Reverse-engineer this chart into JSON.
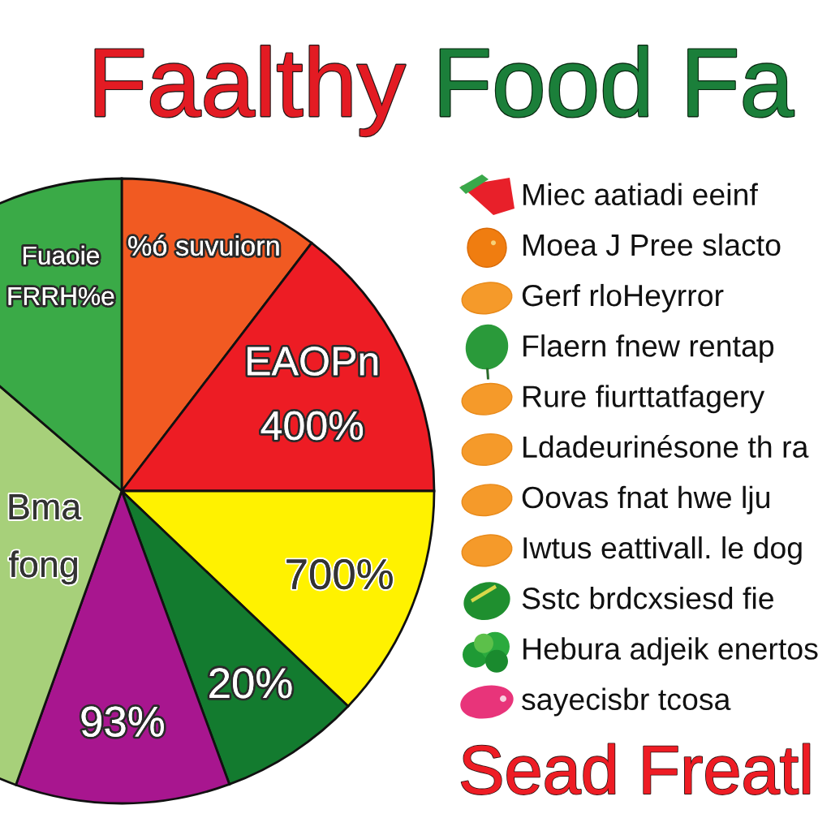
{
  "chart_data": {
    "type": "pie",
    "title": "Faalthy Food Fa",
    "categories": [
      "%ó suvuiorn",
      "EAOPn\n400%",
      "700%",
      "20%",
      "93%",
      "Bma\nfong",
      "Fuaoie\nFRRH%e"
    ],
    "values": [
      10.4,
      14.6,
      12.1,
      7.3,
      11.1,
      30.8,
      13.7
    ],
    "colors": [
      "#f15a22",
      "#ed1c24",
      "#fff200",
      "#137b2f",
      "#a8168f",
      "#a7d07a",
      "#3aaa47"
    ],
    "annotations": [
      "Miec aatiadi eeinf",
      "Moea J Pree slacto",
      "Gerf rloHeyrror",
      "Flaern fnew rentap",
      "Rure fiurttatfagery",
      "Ldadeurinésone th ra",
      "Oovas fnat hwe lju",
      "Iwtus eattivall. le dog",
      "Sstc brdcxsiesd fie",
      "Hebura adjeik enertos",
      "sayecisbr tcosa",
      "Sead Freatl"
    ]
  }
}
